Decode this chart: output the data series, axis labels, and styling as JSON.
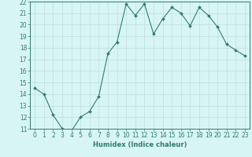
{
  "x": [
    0,
    1,
    2,
    3,
    4,
    5,
    6,
    7,
    8,
    9,
    10,
    11,
    12,
    13,
    14,
    15,
    16,
    17,
    18,
    19,
    20,
    21,
    22,
    23
  ],
  "y": [
    14.5,
    14.0,
    12.2,
    11.0,
    10.8,
    12.0,
    12.5,
    13.8,
    17.5,
    18.5,
    21.8,
    20.8,
    21.8,
    19.2,
    20.5,
    21.5,
    21.0,
    19.9,
    21.5,
    20.8,
    19.8,
    18.3,
    17.8,
    17.3
  ],
  "line_color": "#2e7d6e",
  "marker": "D",
  "marker_size": 2.0,
  "bg_color": "#d8f5f5",
  "grid_color": "#c0dede",
  "xlabel": "Humidex (Indice chaleur)",
  "ylabel": "",
  "xlim": [
    -0.5,
    23.5
  ],
  "ylim": [
    11,
    22
  ],
  "yticks": [
    11,
    12,
    13,
    14,
    15,
    16,
    17,
    18,
    19,
    20,
    21,
    22
  ],
  "xticks": [
    0,
    1,
    2,
    3,
    4,
    5,
    6,
    7,
    8,
    9,
    10,
    11,
    12,
    13,
    14,
    15,
    16,
    17,
    18,
    19,
    20,
    21,
    22,
    23
  ],
  "tick_color": "#2e7d6e",
  "label_color": "#2e7d6e",
  "xlabel_fontsize": 6.0,
  "tick_fontsize": 5.5,
  "linewidth": 0.8
}
